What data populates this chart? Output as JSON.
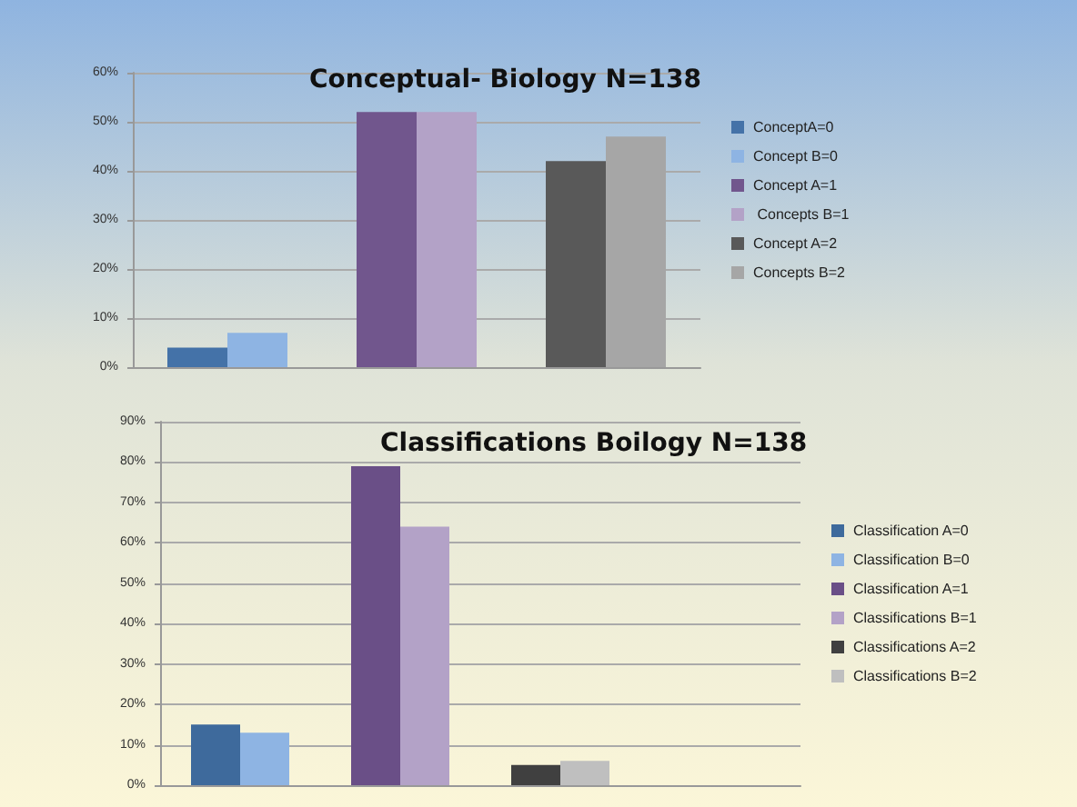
{
  "chart_data": [
    {
      "type": "bar",
      "title": "Conceptual- Biology N=138",
      "categories": [
        null,
        null,
        null
      ],
      "legend": "right",
      "grid": "y",
      "ylim": [
        0,
        60
      ],
      "yticks": [
        {
          "value": 0,
          "label": "0%"
        },
        {
          "value": 10,
          "label": "10%"
        },
        {
          "value": 20,
          "label": "20%"
        },
        {
          "value": 30,
          "label": "30%"
        },
        {
          "value": 40,
          "label": "40%"
        },
        {
          "value": 50,
          "label": "50%"
        },
        {
          "value": 60,
          "label": "60%"
        }
      ],
      "series": [
        {
          "name": "ConceptA=0",
          "color": "#4472a8",
          "values": [
            4,
            null,
            null
          ]
        },
        {
          "name": "Concept B=0",
          "color": "#8eb4e3",
          "values": [
            7,
            null,
            null
          ]
        },
        {
          "name": "Concept A=1",
          "color": "#71568d",
          "values": [
            null,
            52,
            null
          ]
        },
        {
          "name": " Concepts B=1",
          "color": "#b3a2c7",
          "values": [
            null,
            52,
            null
          ]
        },
        {
          "name": "Concept A=2",
          "color": "#595959",
          "values": [
            null,
            null,
            42
          ]
        },
        {
          "name": "Concepts B=2",
          "color": "#a6a6a6",
          "values": [
            null,
            null,
            47
          ]
        }
      ]
    },
    {
      "type": "bar",
      "title": "Classifications Boilogy N=138",
      "categories": [
        null,
        null,
        null,
        null
      ],
      "legend": "right",
      "grid": "y",
      "ylim": [
        0,
        90
      ],
      "yticks": [
        {
          "value": 0,
          "label": "0%"
        },
        {
          "value": 10,
          "label": "10%"
        },
        {
          "value": 20,
          "label": "20%"
        },
        {
          "value": 30,
          "label": "30%"
        },
        {
          "value": 40,
          "label": "40%"
        },
        {
          "value": 50,
          "label": "50%"
        },
        {
          "value": 60,
          "label": "60%"
        },
        {
          "value": 70,
          "label": "70%"
        },
        {
          "value": 80,
          "label": "80%"
        },
        {
          "value": 90,
          "label": "90%"
        }
      ],
      "series": [
        {
          "name": "Classification A=0",
          "color": "#3e6a9c",
          "values": [
            15,
            null,
            null,
            null
          ]
        },
        {
          "name": "Classification B=0",
          "color": "#8eb4e3",
          "values": [
            13,
            null,
            null,
            null
          ]
        },
        {
          "name": "Classification A=1",
          "color": "#6a4f87",
          "values": [
            null,
            79,
            null,
            null
          ]
        },
        {
          "name": "Classifications B=1",
          "color": "#b3a2c7",
          "values": [
            null,
            64,
            null,
            null
          ]
        },
        {
          "name": "Classifications A=2",
          "color": "#404040",
          "values": [
            null,
            null,
            5,
            null
          ]
        },
        {
          "name": "Classifications B=2",
          "color": "#bfbfbf",
          "values": [
            null,
            null,
            6,
            null
          ]
        }
      ]
    }
  ]
}
